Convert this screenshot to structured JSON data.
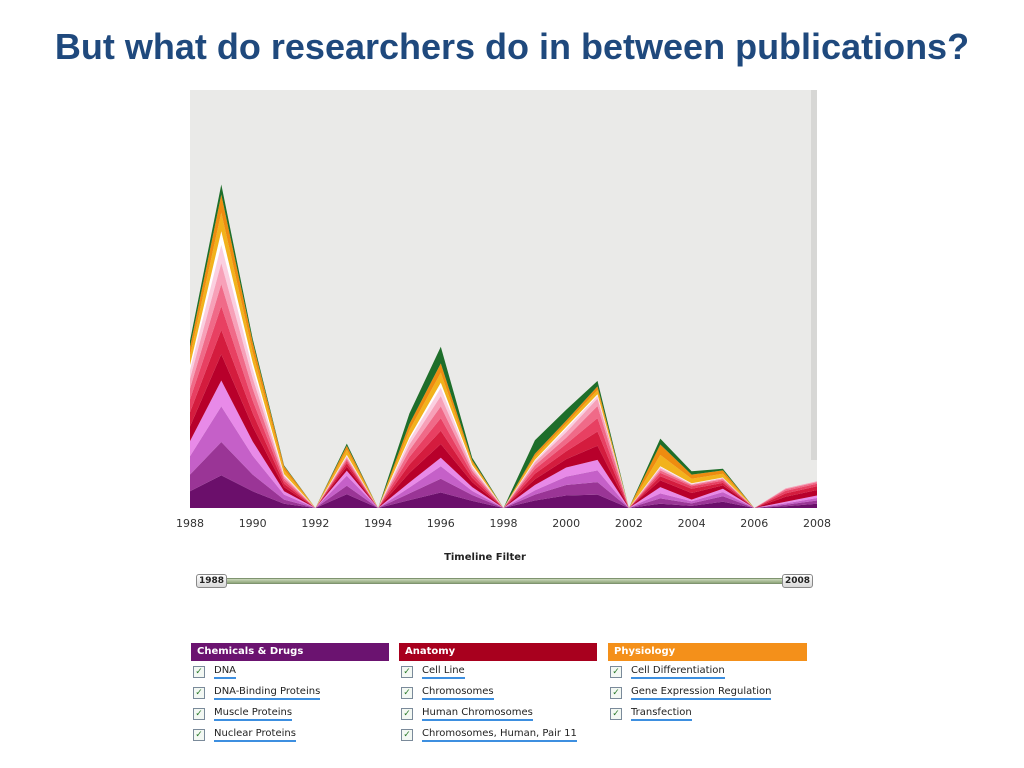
{
  "slide": {
    "title": "But what do researchers do in between publications?"
  },
  "chart_data": {
    "type": "area",
    "stacked": true,
    "title": "",
    "xlabel": "",
    "ylabel": "",
    "xlim": [
      1988,
      2008
    ],
    "ylim": [
      0,
      100
    ],
    "x_ticks": [
      "1988",
      "1990",
      "1992",
      "1994",
      "1996",
      "1998",
      "2000",
      "2002",
      "2004",
      "2006",
      "2008"
    ],
    "x": [
      1988,
      1989,
      1990,
      1991,
      1992,
      1993,
      1994,
      1995,
      1996,
      1997,
      1998,
      1999,
      2000,
      2001,
      2002,
      2003,
      2004,
      2005,
      2006,
      2007,
      2008
    ],
    "series": [
      {
        "color": "#6b0f6b",
        "values": [
          4.0,
          7.8,
          4.0,
          1.0,
          0,
          3.3,
          0,
          1.9,
          3.7,
          1.7,
          0,
          1.8,
          3.0,
          3.2,
          0,
          1.0,
          0.5,
          1.5,
          0,
          0.4,
          1.0
        ]
      },
      {
        "color": "#9a3596",
        "values": [
          4.0,
          8.0,
          4.0,
          1.0,
          0,
          2.0,
          0,
          1.6,
          3.3,
          1.4,
          0,
          1.4,
          2.5,
          3.0,
          0,
          1.3,
          0.6,
          1.3,
          0,
          0.4,
          0.8
        ]
      },
      {
        "color": "#c560c8",
        "values": [
          4.4,
          8.5,
          4.5,
          1.2,
          0,
          2.4,
          0,
          1.4,
          3.0,
          1.0,
          0,
          1.0,
          2.0,
          2.8,
          0,
          1.2,
          0.5,
          1.0,
          0,
          0.3,
          0.6
        ]
      },
      {
        "color": "#e88ae8",
        "values": [
          3.6,
          6.2,
          3.4,
          0.8,
          0,
          1.2,
          0,
          1.2,
          2.0,
          0.9,
          0,
          1.3,
          2.2,
          2.5,
          0,
          1.5,
          0.4,
          0.8,
          0,
          0.4,
          0.6
        ]
      },
      {
        "color": "#b8002b",
        "values": [
          3.5,
          6.3,
          3.6,
          1.0,
          0,
          1.0,
          0,
          2.3,
          3.3,
          1.2,
          0,
          1.4,
          2.0,
          3.4,
          0,
          1.6,
          1.6,
          0.8,
          0,
          1.2,
          1.3
        ]
      },
      {
        "color": "#d41c3e",
        "values": [
          3.4,
          5.8,
          3.2,
          0.8,
          0,
          0.8,
          0,
          2.0,
          3.2,
          1.0,
          0,
          1.3,
          1.9,
          3.4,
          0,
          1.0,
          1.0,
          0.6,
          0,
          0.8,
          0.9
        ]
      },
      {
        "color": "#e84062",
        "values": [
          3.1,
          5.7,
          3.0,
          0.7,
          0,
          0.6,
          0,
          1.8,
          3.0,
          0.9,
          0,
          1.1,
          1.7,
          3.2,
          0,
          0.8,
          0.6,
          0.5,
          0,
          0.6,
          0.6
        ]
      },
      {
        "color": "#f06a88",
        "values": [
          2.6,
          5.3,
          2.9,
          0.6,
          0,
          0.5,
          0,
          1.6,
          2.8,
          0.8,
          0,
          0.9,
          1.5,
          2.9,
          0,
          0.6,
          0.3,
          0.4,
          0,
          0.4,
          0.4
        ]
      },
      {
        "color": "#f7a0b8",
        "values": [
          2.3,
          5.0,
          2.5,
          0.5,
          0,
          0.4,
          0,
          1.4,
          2.5,
          0.6,
          0,
          0.7,
          1.3,
          1.8,
          0,
          0.5,
          0.2,
          0.2,
          0,
          0.2,
          0.2
        ]
      },
      {
        "color": "#fbcfe0",
        "values": [
          2.1,
          4.4,
          2.2,
          0.3,
          0,
          0.3,
          0,
          1.1,
          2.0,
          0.5,
          0,
          0.4,
          0.9,
          0.7,
          0,
          0.3,
          0.1,
          0.1,
          0,
          0,
          0
        ]
      },
      {
        "color": "#ffffff",
        "values": [
          1.2,
          3.2,
          1.5,
          0.2,
          0,
          0.2,
          0,
          0.6,
          1.2,
          0.3,
          0,
          0.2,
          0.4,
          0.3,
          0,
          0.2,
          0.1,
          0.1,
          0,
          0,
          0
        ]
      },
      {
        "color": "#f2b21c",
        "values": [
          2.2,
          4.5,
          2.5,
          1.0,
          0,
          1.2,
          0,
          1.7,
          2.4,
          0.6,
          0,
          0.8,
          0.8,
          1.0,
          0,
          2.7,
          1.1,
          0.9,
          0,
          0,
          0
        ]
      },
      {
        "color": "#ee8c10",
        "values": [
          2.1,
          4.3,
          2.4,
          0.9,
          0,
          1.0,
          0,
          1.5,
          2.2,
          0.5,
          0,
          0.7,
          0.7,
          0.9,
          0,
          2.5,
          1.0,
          0.8,
          0,
          0,
          0
        ]
      },
      {
        "color": "#1e6e2a",
        "values": [
          1.5,
          2.4,
          0.8,
          0.2,
          0,
          0.5,
          0,
          2.5,
          4.0,
          0.6,
          0,
          3.2,
          2.6,
          1.3,
          0,
          1.4,
          0.8,
          0.4,
          0,
          0,
          0
        ]
      }
    ]
  },
  "timeline_filter": {
    "label": "Timeline Filter",
    "start_label": "1988",
    "end_label": "2008"
  },
  "categories": [
    {
      "title": "Chemicals & Drugs",
      "color": "#6b1370",
      "items": [
        "DNA",
        "DNA-Binding Proteins",
        "Muscle Proteins",
        "Nuclear Proteins"
      ]
    },
    {
      "title": "Anatomy",
      "color": "#a8001e",
      "items": [
        "Cell Line",
        "Chromosomes",
        "Human Chromosomes",
        "Chromosomes, Human, Pair 11"
      ]
    },
    {
      "title": "Physiology",
      "color": "#f4901a",
      "items": [
        "Cell Differentiation",
        "Gene Expression Regulation",
        "Transfection"
      ]
    }
  ]
}
